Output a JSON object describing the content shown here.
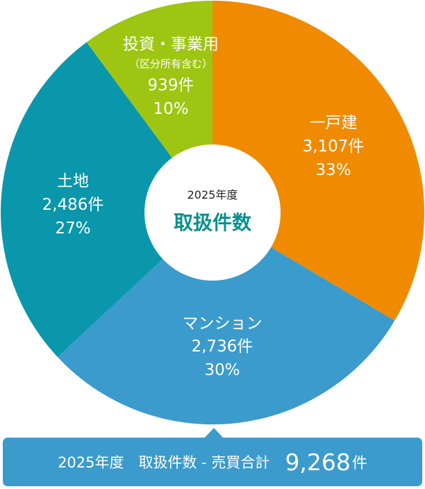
{
  "chart_data": {
    "type": "pie",
    "center_label": {
      "year": "2025年度",
      "title": "取扱件数"
    },
    "slices": [
      {
        "name": "一戸建",
        "value": 3107,
        "value_label": "3,107件",
        "percent": 33,
        "percent_label": "33%",
        "color": "#f08a00"
      },
      {
        "name": "マンション",
        "value": 2736,
        "value_label": "2,736件",
        "percent": 30,
        "percent_label": "30%",
        "color": "#3b9bcc"
      },
      {
        "name": "土地",
        "value": 2486,
        "value_label": "2,486件",
        "percent": 27,
        "percent_label": "27%",
        "color": "#0a97ac"
      },
      {
        "name": "投資・事業用",
        "sub_name": "（区分所有含む）",
        "value": 939,
        "value_label": "939件",
        "percent": 10,
        "percent_label": "10%",
        "color": "#9dc512"
      }
    ]
  },
  "summary": {
    "text": "2025年度　取扱件数 - 売買合計",
    "value": "9,268",
    "unit": "件"
  }
}
